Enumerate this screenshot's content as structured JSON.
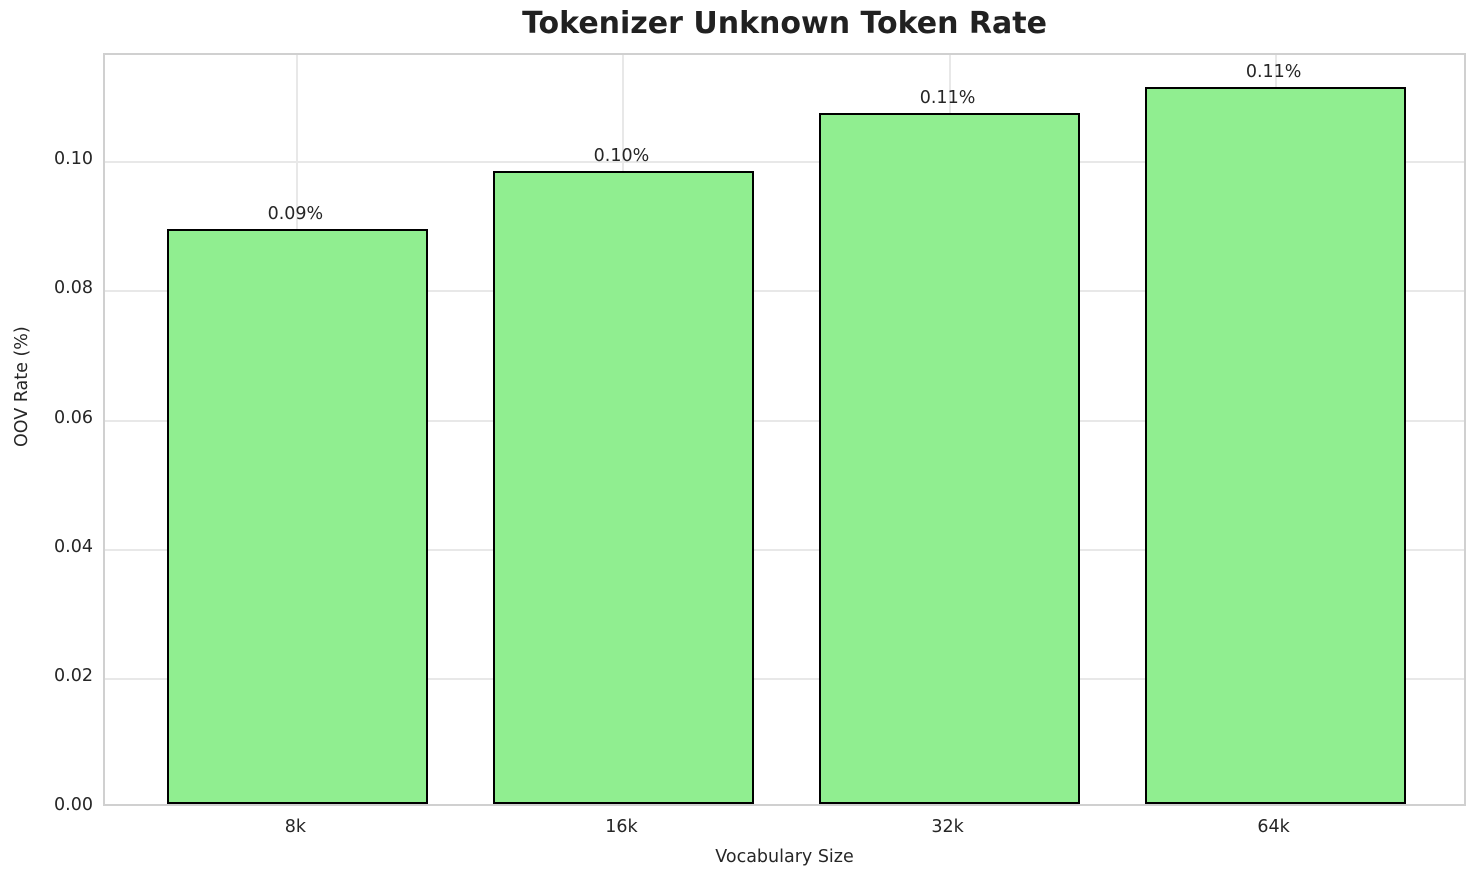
{
  "chart_data": {
    "type": "bar",
    "title": "Tokenizer Unknown Token Rate",
    "xlabel": "Vocabulary Size",
    "ylabel": "OOV Rate (%)",
    "categories": [
      "8k",
      "16k",
      "32k",
      "64k"
    ],
    "values": [
      0.089,
      0.098,
      0.107,
      0.111
    ],
    "bar_labels": [
      "0.09%",
      "0.10%",
      "0.11%",
      "0.11%"
    ],
    "yticks": [
      0.0,
      0.02,
      0.04,
      0.06,
      0.08,
      0.1
    ],
    "ytick_labels": [
      "0.00",
      "0.02",
      "0.04",
      "0.06",
      "0.08",
      "0.10"
    ],
    "ylim": [
      0,
      0.1166
    ],
    "grid": true,
    "legend_position": "none",
    "colors": {
      "bar_fill": "#90EE90",
      "bar_edge": "#000000",
      "grid": "#e8e8e8",
      "spine": "#d0d0d0",
      "text": "#262626",
      "title": "#212121",
      "background": "#ffffff"
    }
  }
}
